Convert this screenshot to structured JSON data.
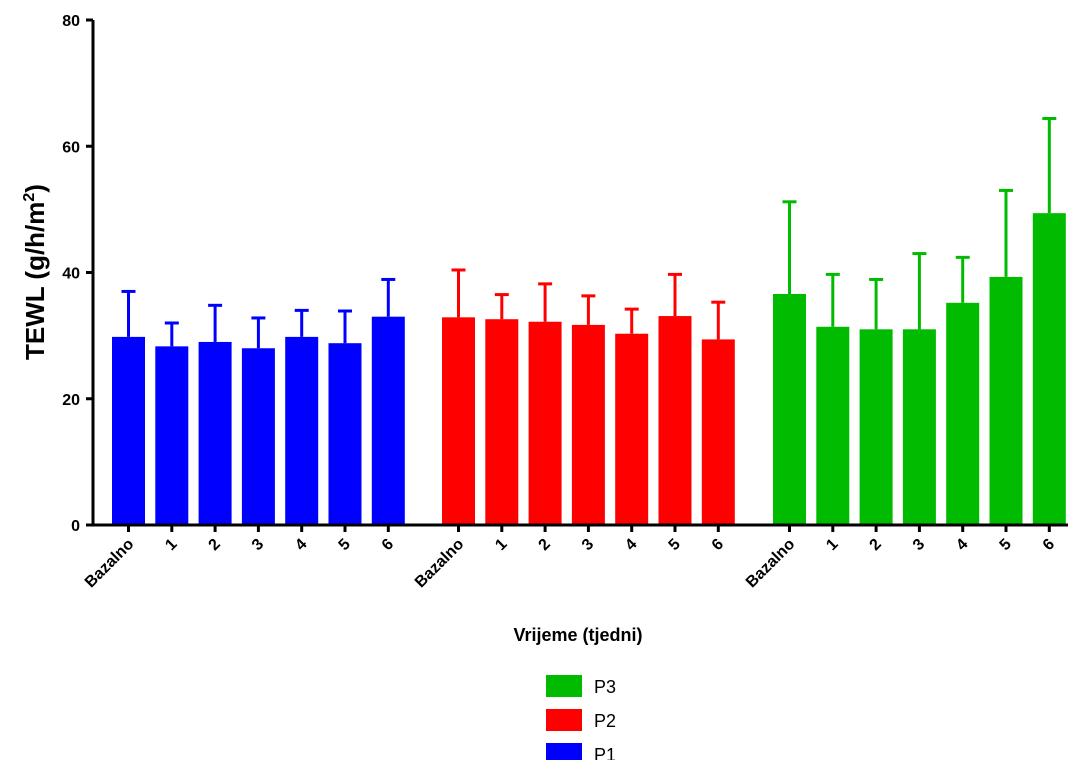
{
  "chart_data": {
    "type": "bar",
    "ylabel": "TEWL (g/h/m",
    "ylabel_sup": "2",
    "ylabel_close": ")",
    "xlabel": "Vrijeme (tjedni)",
    "ylim": [
      0,
      80
    ],
    "yticks": [
      0,
      20,
      40,
      60,
      80
    ],
    "categories": [
      "Bazalno",
      "1",
      "2",
      "3",
      "4",
      "5",
      "6"
    ],
    "error_bars": "upper only",
    "grid": false,
    "legend_position": "bottom",
    "groups": [
      {
        "name": "P1",
        "color": "#0000ff",
        "values": [
          29.8,
          28.3,
          29.0,
          28.0,
          29.8,
          28.8,
          33.0
        ],
        "errors_upper": [
          37.0,
          32.0,
          34.8,
          32.8,
          34.0,
          33.9,
          38.9
        ]
      },
      {
        "name": "P2",
        "color": "#ff0000",
        "values": [
          32.9,
          32.6,
          32.2,
          31.7,
          30.3,
          33.1,
          29.4
        ],
        "errors_upper": [
          40.4,
          36.5,
          38.2,
          36.3,
          34.2,
          39.7,
          35.3
        ]
      },
      {
        "name": "P3",
        "color": "#00bb00",
        "values": [
          36.6,
          31.4,
          31.0,
          31.0,
          35.2,
          39.3,
          49.4
        ],
        "errors_upper": [
          51.2,
          39.7,
          38.9,
          43.0,
          42.4,
          53.0,
          64.4
        ]
      }
    ],
    "legend": [
      {
        "label": "P3",
        "color": "#00bb00"
      },
      {
        "label": "P2",
        "color": "#ff0000"
      },
      {
        "label": "P1",
        "color": "#0000ff"
      }
    ]
  }
}
